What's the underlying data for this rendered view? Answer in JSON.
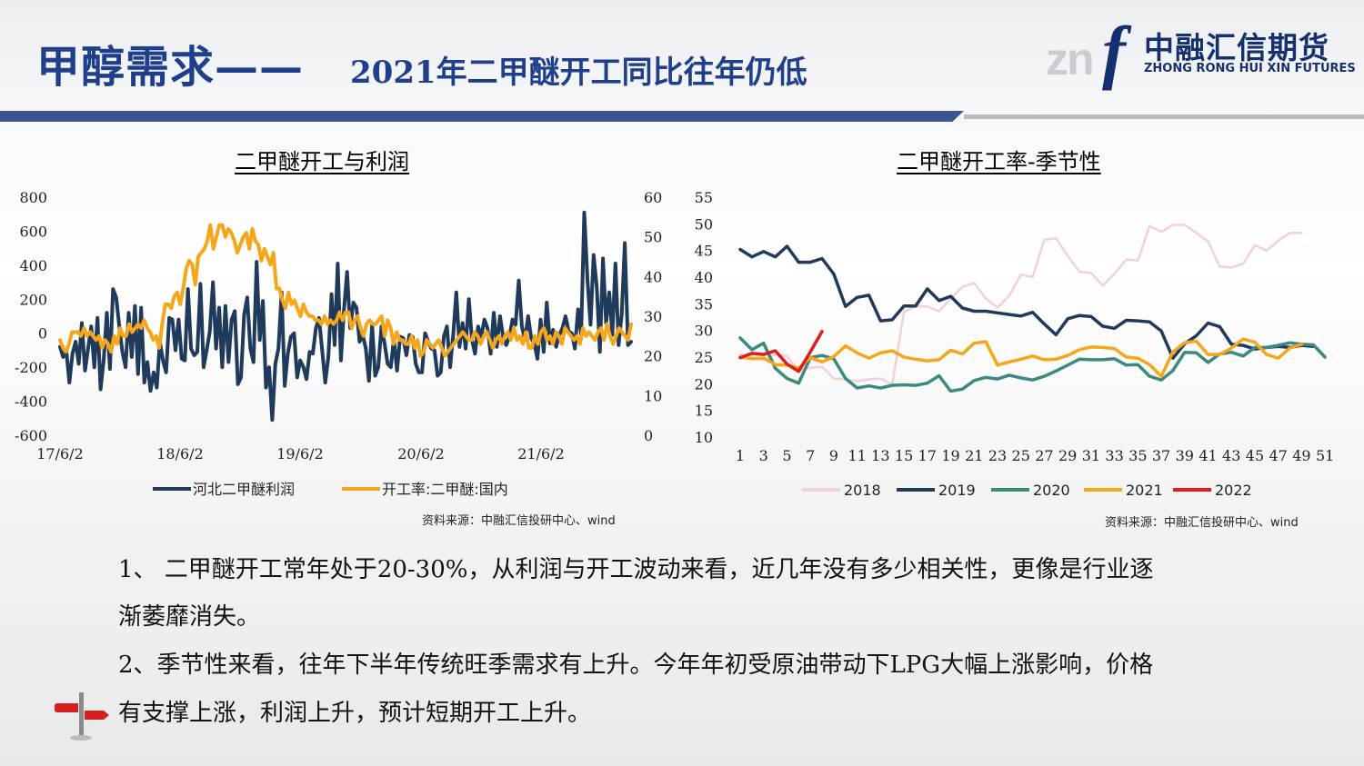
{
  "header": {
    "title_main": "甲醇需求——",
    "title_sub": "2021年二甲醚开工同比往年仍低",
    "logo_mark": "znf",
    "logo_cn": "中融汇信期货",
    "logo_en": "ZHONG RONG HUI XIN FUTURES"
  },
  "colors": {
    "navy": "#1f3a5a",
    "orange": "#f5a61b",
    "pink": "#f2d3d3",
    "teal": "#3a8a7f",
    "red": "#e01d1d",
    "brand": "#1f3f8a"
  },
  "chart_data": [
    {
      "type": "line",
      "title": "二甲醚开工与利润",
      "x_ticks": [
        "17/6/2",
        "18/6/2",
        "19/6/2",
        "20/6/2",
        "21/6/2"
      ],
      "y_left": {
        "min": -600,
        "max": 800,
        "ticks": [
          800,
          600,
          400,
          200,
          0,
          -200,
          -400,
          -600
        ]
      },
      "y_right": {
        "min": 0,
        "max": 60,
        "ticks": [
          60,
          50,
          40,
          30,
          20,
          10,
          0
        ]
      },
      "grid": false,
      "legend": "bottom",
      "series": [
        {
          "name": "河北二甲醚利润",
          "axis": "left",
          "color": "#1f3a5a",
          "values": [
            -80,
            -140,
            -100,
            -290,
            -120,
            -50,
            -180,
            60,
            -220,
            -90,
            40,
            -200,
            90,
            -330,
            -160,
            120,
            -210,
            260,
            210,
            40,
            -110,
            -200,
            120,
            -140,
            160,
            -240,
            150,
            -290,
            -170,
            -340,
            -230,
            -320,
            -50,
            -160,
            -230,
            90,
            80,
            -100,
            80,
            -150,
            -160,
            260,
            -90,
            -130,
            -110,
            290,
            -200,
            -100,
            10,
            300,
            -90,
            150,
            -200,
            160,
            -170,
            80,
            130,
            -300,
            -260,
            110,
            210,
            -90,
            -170,
            420,
            -40,
            190,
            -320,
            -200,
            -510,
            -180,
            -90,
            240,
            -310,
            -120,
            -20,
            0,
            -260,
            -160,
            -200,
            -270,
            -110,
            -120,
            30,
            90,
            -100,
            -290,
            -140,
            230,
            -70,
            410,
            -160,
            140,
            360,
            30,
            180,
            150,
            -50,
            -10,
            -90,
            -280,
            50,
            -250,
            -200,
            40,
            -60,
            -180,
            -200,
            -30,
            -220,
            -20,
            -30,
            -130,
            -10,
            -20,
            -180,
            -230,
            -230,
            0,
            -50,
            -90,
            -100,
            -250,
            -230,
            -20,
            40,
            -200,
            -10,
            240,
            -80,
            60,
            -90,
            200,
            -40,
            -120,
            40,
            -20,
            80,
            30,
            -120,
            120,
            -80,
            100,
            -20,
            -70,
            -20,
            80,
            50,
            310,
            40,
            -40,
            100,
            -30,
            -60,
            -150,
            80,
            -110,
            180,
            -60,
            20,
            -80,
            -10,
            30,
            100,
            10,
            0,
            -90,
            140,
            -10,
            710,
            320,
            50,
            460,
            270,
            -110,
            440,
            60,
            240,
            -10,
            410,
            -70,
            110,
            530,
            -70,
            -50
          ]
        },
        {
          "name": "开工率:二甲醚:国内",
          "axis": "right",
          "color": "#f5a61b",
          "values": [
            24,
            22,
            21,
            23,
            26,
            26,
            26,
            25,
            27,
            25,
            26,
            25,
            24,
            25,
            22,
            24,
            23,
            21,
            25,
            23,
            27,
            25,
            25,
            28,
            26,
            27,
            28,
            27,
            29,
            27,
            26,
            24,
            25,
            22,
            28,
            33,
            33,
            32,
            35,
            36,
            33,
            37,
            42,
            44,
            43,
            38,
            45,
            46,
            47,
            49,
            53,
            47,
            50,
            53,
            53,
            50,
            52,
            51,
            49,
            46,
            48,
            50,
            51,
            47,
            52,
            49,
            48,
            44,
            47,
            45,
            43,
            46,
            37,
            37,
            34,
            32,
            36,
            33,
            34,
            32,
            30,
            33,
            31,
            30,
            30,
            29,
            29,
            28,
            30,
            28,
            29,
            28,
            29,
            31,
            29,
            31,
            31,
            27,
            29,
            30,
            27,
            25,
            28,
            29,
            28,
            28,
            29,
            30,
            25,
            29,
            27,
            23,
            26,
            24,
            24,
            23,
            23,
            25,
            22,
            24,
            20,
            21,
            24,
            23,
            22,
            23,
            24,
            22,
            20,
            21,
            22,
            23,
            24,
            25,
            26,
            25,
            24,
            24,
            26,
            25,
            23,
            25,
            26,
            24,
            22,
            24,
            25,
            23,
            25,
            26,
            24,
            27,
            24,
            25,
            23,
            26,
            22,
            22,
            25,
            23,
            26,
            27,
            24,
            25,
            23,
            26,
            25,
            23,
            27,
            26,
            25,
            24,
            25,
            23,
            27,
            25,
            26,
            25,
            24,
            26,
            27,
            24,
            28,
            25,
            23,
            25,
            27,
            26,
            25,
            24,
            28
          ]
        }
      ],
      "source": "资料来源：中融汇信投研中心、wind"
    },
    {
      "type": "line",
      "title": "二甲醚开工率-季节性",
      "x_ticks": [
        "1",
        "3",
        "5",
        "7",
        "9",
        "11",
        "13",
        "15",
        "17",
        "19",
        "21",
        "23",
        "25",
        "27",
        "29",
        "31",
        "33",
        "35",
        "37",
        "39",
        "41",
        "43",
        "45",
        "47",
        "49",
        "51"
      ],
      "y_left": {
        "min": 10,
        "max": 55,
        "ticks": [
          55,
          50,
          45,
          40,
          35,
          30,
          25,
          20,
          15,
          10
        ]
      },
      "grid": false,
      "legend": "bottom",
      "series": [
        {
          "name": "2018",
          "color": "#f2d3d3",
          "values": [
            null,
            null,
            null,
            null,
            null,
            null,
            null,
            null,
            null,
            null,
            null,
            null,
            null,
            null,
            null,
            null,
            null,
            null,
            null,
            null,
            null,
            null,
            null,
            null,
            null,
            null,
            null,
            null,
            null,
            null,
            null,
            null,
            null,
            null,
            null,
            null,
            null,
            null,
            null,
            null,
            null,
            null,
            null,
            null,
            null,
            null,
            null,
            null,
            null,
            null,
            null
          ]
        },
        {
          "name": "2019",
          "color": "#1f3a5a",
          "values": [
            45.2,
            43.8,
            44.8,
            43.8,
            45.8,
            42.8,
            42.8,
            43.5,
            40.6,
            34.5,
            36.2,
            36.6,
            31.8,
            32.0,
            34.6,
            34.6,
            37.8,
            35.6,
            36.4,
            34.2,
            33.6,
            33.6,
            33.3,
            33.0,
            32.7,
            33.4,
            31.2,
            29.2,
            32.2,
            32.8,
            32.6,
            30.8,
            30.4,
            31.9,
            31.8,
            31.6,
            29.9,
            24.8,
            27.5,
            29.0,
            31.4,
            30.7,
            27.4,
            27.2,
            26.5,
            26.8,
            27.0,
            26.8,
            27.2,
            27.0,
            null
          ]
        },
        {
          "name": "2020",
          "color": "#3a8a7f",
          "values": [
            28.6,
            26.4,
            27.6,
            22.9,
            21.0,
            20.1,
            24.9,
            25.3,
            24.7,
            21.0,
            19.2,
            19.6,
            19.2,
            19.7,
            19.8,
            19.7,
            20.1,
            21.5,
            18.6,
            19.0,
            20.6,
            21.2,
            20.9,
            21.6,
            21.1,
            20.7,
            21.4,
            22.4,
            23.5,
            24.6,
            24.5,
            24.5,
            24.7,
            23.5,
            23.6,
            21.4,
            20.7,
            22.5,
            25.9,
            25.8,
            24.0,
            25.6,
            25.9,
            25.2,
            26.8,
            26.8,
            27.2,
            27.7,
            27.4,
            27.3,
            25.0
          ]
        },
        {
          "name": "2021",
          "color": "#f5a61b",
          "values": [
            25.0,
            24.7,
            24.8,
            23.6,
            23.5,
            22.9,
            24.9,
            24.1,
            25.1,
            27.1,
            25.8,
            24.8,
            25.8,
            26.2,
            25.0,
            24.6,
            24.3,
            24.5,
            26.3,
            25.6,
            27.6,
            27.9,
            23.5,
            24.1,
            24.6,
            25.2,
            24.5,
            24.6,
            25.3,
            26.4,
            26.9,
            26.8,
            26.6,
            25.0,
            24.8,
            23.6,
            21.4,
            26.0,
            27.7,
            28.0,
            25.5,
            25.5,
            26.7,
            28.4,
            27.8,
            25.5,
            24.8,
            26.7,
            27.4,
            null,
            null
          ]
        },
        {
          "name": "2022",
          "color": "#e01d1d",
          "values": [
            24.9,
            25.7,
            25.5,
            26.2,
            23.7,
            22.3,
            26.0,
            29.8,
            null,
            null,
            null,
            null,
            null,
            null,
            null,
            null,
            null,
            null,
            null,
            null,
            null,
            null,
            null,
            null,
            null,
            null,
            null,
            null,
            null,
            null,
            null,
            null,
            null,
            null,
            null,
            null,
            null,
            null,
            null,
            null,
            null,
            null,
            null,
            null,
            null,
            null,
            null,
            null,
            null,
            null,
            null
          ]
        }
      ],
      "source": "资料来源：中融汇信投研中心、wind"
    }
  ],
  "paragraphs": {
    "p1_line1": "1、  二甲醚开工常年处于20-30%，从利润与开工波动来看，近几年没有多少相关性，更像是行业逐",
    "p1_line2": "渐萎靡消失。",
    "p2_line1": "2、季节性来看，往年下半年传统旺季需求有上升。今年年初受原油带动下LPG大幅上涨影响，价格",
    "p2_line2": "有支撑上涨，利润上升，预计短期开工上升。"
  }
}
